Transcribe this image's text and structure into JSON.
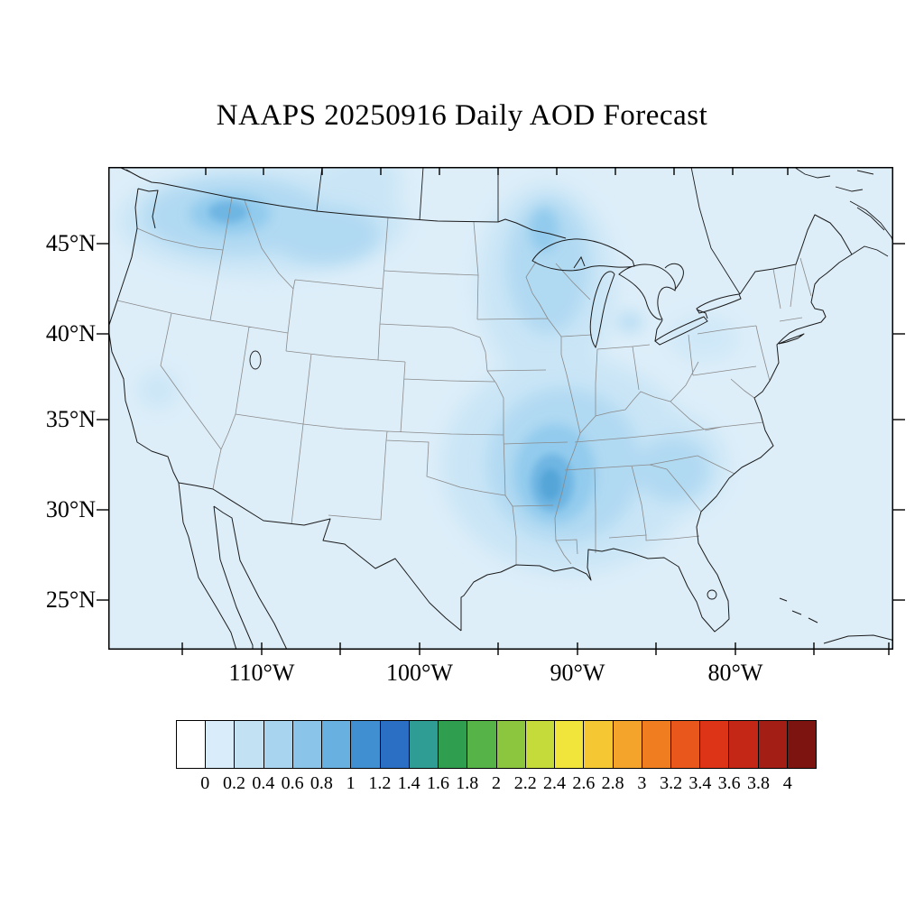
{
  "title": "NAAPS 20250916 Daily AOD Forecast",
  "axes": {
    "lat_labels": [
      "45°N",
      "40°N",
      "35°N",
      "30°N",
      "25°N"
    ],
    "lon_labels": [
      "110°W",
      "100°W",
      "90°W",
      "80°W"
    ]
  },
  "colorbar": {
    "tick_labels": [
      "0",
      "0.2",
      "0.4",
      "0.6",
      "0.8",
      "1",
      "1.2",
      "1.4",
      "1.6",
      "1.8",
      "2",
      "2.2",
      "2.4",
      "2.6",
      "2.8",
      "3",
      "3.2",
      "3.4",
      "3.6",
      "3.8",
      "4"
    ],
    "colors": [
      "#ffffff",
      "#d8ecf9",
      "#c2e2f4",
      "#a8d4ef",
      "#8ac4e9",
      "#68b0e0",
      "#3f8fd1",
      "#2b6fc4",
      "#2f9d93",
      "#2f9e4f",
      "#55b348",
      "#8cc63f",
      "#c4db3a",
      "#f1e53b",
      "#f5c733",
      "#f4a42a",
      "#f07e21",
      "#e9571c",
      "#dd3317",
      "#c42716",
      "#a31e14",
      "#7d1410"
    ]
  },
  "field": {
    "base": "#ddeef9",
    "l1": "#c9e5f6",
    "l2": "#b0d9f2",
    "l3": "#92cbed",
    "l4": "#6fb6e3",
    "l5": "#54a5d8"
  },
  "map": {
    "coast_color": "#1b1b1b",
    "state_color": "#8a8a8a"
  },
  "chart_data": {
    "type": "heatmap",
    "title": "NAAPS 20250916 Daily AOD Forecast",
    "geography": "Continental United States with state boundaries, southern Canada and northern Mexico, Lambert-conformal-style projection",
    "x_axis": {
      "label": "longitude",
      "tick_labels": [
        "110°W",
        "100°W",
        "90°W",
        "80°W"
      ]
    },
    "y_axis": {
      "label": "latitude",
      "tick_labels": [
        "45°N",
        "40°N",
        "35°N",
        "30°N",
        "25°N"
      ]
    },
    "colorbar": {
      "quantity": "Aerosol Optical Depth (AOD)",
      "boundaries": [
        0,
        0.2,
        0.4,
        0.6,
        0.8,
        1,
        1.2,
        1.4,
        1.6,
        1.8,
        2,
        2.2,
        2.4,
        2.6,
        2.8,
        3,
        3.2,
        3.4,
        3.6,
        3.8,
        4
      ],
      "n_boxes": 22,
      "style": "white through blues, teal, greens, yellow, orange to dark red"
    },
    "regions": [
      {
        "name": "background over most of domain (CONUS, oceans)",
        "aod": "0.0-0.2"
      },
      {
        "name": "Pacific Northwest: Washington, Idaho panhandle, western Montana",
        "aod": "0.2-0.6",
        "peak": 0.6
      },
      {
        "name": "small patch north-central (southern Canada above Montana/Dakotas)",
        "aod": "0.2-0.4"
      },
      {
        "name": "Upper Midwest: Minnesota, Wisconsin, Lake Michigan, Illinois",
        "aod": "0.2-0.4"
      },
      {
        "name": "Lower Mississippi Valley: Arkansas, Mississippi, west Tennessee",
        "aod": "0.2-1.0",
        "peak": 1.0
      },
      {
        "name": "Southeast: Georgia, South Carolina",
        "aod": "0.2-0.4"
      },
      {
        "name": "central California",
        "aod": "0.2-0.4"
      }
    ]
  }
}
